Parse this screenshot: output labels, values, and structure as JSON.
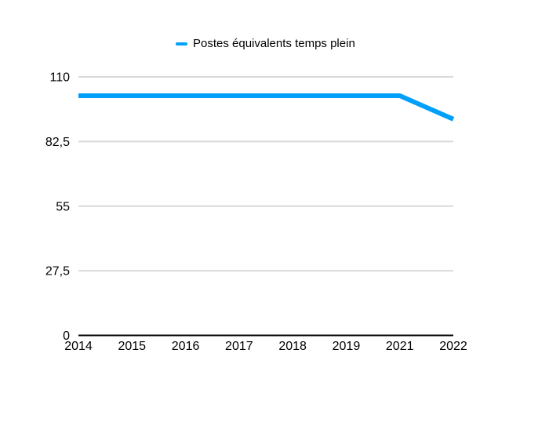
{
  "legend": {
    "position": "top",
    "marker_shape": "dash"
  },
  "chart_data": {
    "type": "line",
    "title": "",
    "xlabel": "",
    "ylabel": "",
    "categories": [
      "2014",
      "2015",
      "2016",
      "2017",
      "2018",
      "2019",
      "2021",
      "2022"
    ],
    "series": [
      {
        "name": "Postes équivalents temps plein",
        "color": "#00a0fa",
        "values": [
          102,
          102,
          102,
          102,
          102,
          102,
          102,
          92
        ]
      }
    ],
    "ylim": [
      0,
      110
    ],
    "yticks": [
      {
        "value": 0,
        "label": "0"
      },
      {
        "value": 27.5,
        "label": "27,5"
      },
      {
        "value": 55,
        "label": "55"
      },
      {
        "value": 82.5,
        "label": "82,5"
      },
      {
        "value": 110,
        "label": "110"
      }
    ],
    "grid": true,
    "legend_position": "top",
    "colors": {
      "grid": "#d9d9d9",
      "axis": "#000000",
      "text": "#000000",
      "background": "#ffffff"
    }
  }
}
